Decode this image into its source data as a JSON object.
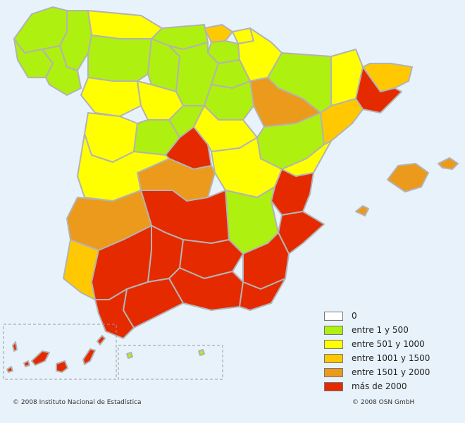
{
  "legend": [
    {
      "label": "0",
      "color": "#ffffff"
    },
    {
      "label": "entre 1 y 500",
      "color": "#aef00f"
    },
    {
      "label": "entre 501 y 1000",
      "color": "#ffff00"
    },
    {
      "label": "entre 1001 y 1500",
      "color": "#ffc800"
    },
    {
      "label": "entre 1501 y 2000",
      "color": "#ec9a1c"
    },
    {
      "label": "más de 2000",
      "color": "#e52a00"
    }
  ],
  "footer": {
    "left": "© 2008 Instituto Nacional de Estadística",
    "right": "© 2008 OSN GmbH"
  },
  "colors": {
    "background": "#e8f2fb",
    "border": "#b3b3b3",
    "inset_border": "#999999"
  }
}
